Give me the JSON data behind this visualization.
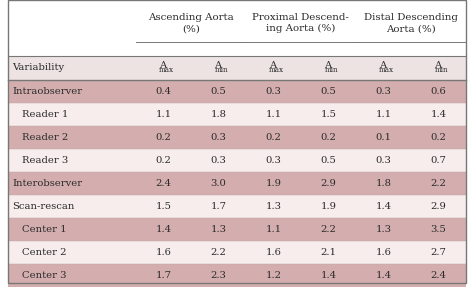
{
  "group_labels": [
    "Ascending Aorta\n(%)",
    "Proximal Descend-\ning Aorta (%)",
    "Distal Descending\nAorta (%)"
  ],
  "sub_labels": [
    "Variability",
    "A_max",
    "A_min",
    "A_max",
    "A_min",
    "A_max",
    "A_min"
  ],
  "rows": [
    {
      "label": "Intraobserver",
      "values": [
        "0.4",
        "0.5",
        "0.3",
        "0.5",
        "0.3",
        "0.6"
      ],
      "shaded": true
    },
    {
      "label": "Reader 1",
      "values": [
        "1.1",
        "1.8",
        "1.1",
        "1.5",
        "1.1",
        "1.4"
      ],
      "shaded": false
    },
    {
      "label": "Reader 2",
      "values": [
        "0.2",
        "0.3",
        "0.2",
        "0.2",
        "0.1",
        "0.2"
      ],
      "shaded": true
    },
    {
      "label": "Reader 3",
      "values": [
        "0.2",
        "0.3",
        "0.3",
        "0.5",
        "0.3",
        "0.7"
      ],
      "shaded": false
    },
    {
      "label": "Interobserver",
      "values": [
        "2.4",
        "3.0",
        "1.9",
        "2.9",
        "1.8",
        "2.2"
      ],
      "shaded": true
    },
    {
      "label": "Scan-rescan",
      "values": [
        "1.5",
        "1.7",
        "1.3",
        "1.9",
        "1.4",
        "2.9"
      ],
      "shaded": false
    },
    {
      "label": "Center 1",
      "values": [
        "1.4",
        "1.3",
        "1.1",
        "2.2",
        "1.3",
        "3.5"
      ],
      "shaded": true
    },
    {
      "label": "Center 2",
      "values": [
        "1.6",
        "2.2",
        "1.6",
        "2.1",
        "1.6",
        "2.7"
      ],
      "shaded": false
    },
    {
      "label": "Center 3",
      "values": [
        "1.7",
        "2.3",
        "1.2",
        "1.4",
        "1.4",
        "2.4"
      ],
      "shaded": true
    }
  ],
  "indented_rows": [
    "Reader 1",
    "Reader 2",
    "Reader 3",
    "Center 1",
    "Center 2",
    "Center 3"
  ],
  "shaded_color": "#d4aeae",
  "white_color": "#f7eded",
  "header_bg": "#ffffff",
  "border_color": "#777777",
  "line_color": "#999999",
  "text_color": "#2a2a2a",
  "font_size": 7.2,
  "header_font_size": 7.4
}
